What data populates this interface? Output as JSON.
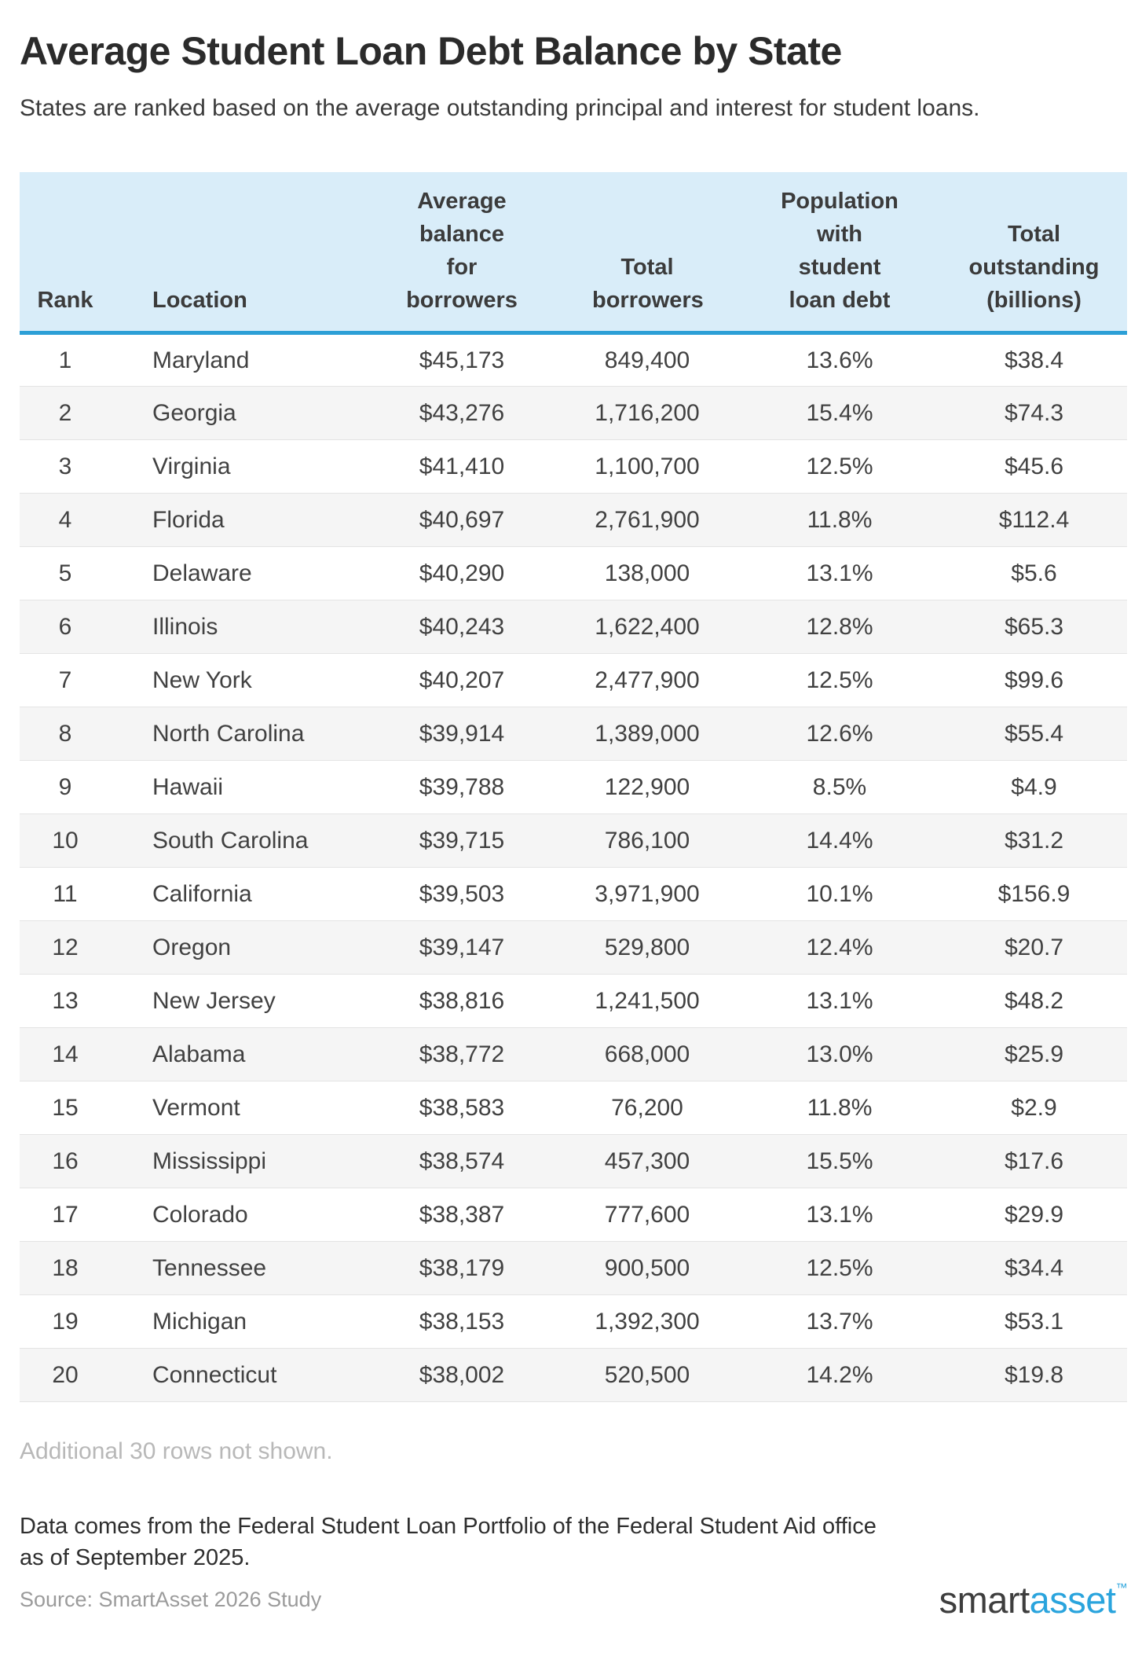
{
  "page": {
    "title": "Average Student Loan Debt Balance by State",
    "subtitle": "States are ranked based on the average outstanding principal and interest for student loans."
  },
  "chart_data": {
    "type": "table",
    "title": "Average Student Loan Debt Balance by State",
    "columns": [
      "Rank",
      "Location",
      "Average balance for borrowers",
      "Total borrowers",
      "Population with student loan debt",
      "Total outstanding (billions)"
    ],
    "rows": [
      [
        "1",
        "Maryland",
        "$45,173",
        "849,400",
        "13.6%",
        "$38.4"
      ],
      [
        "2",
        "Georgia",
        "$43,276",
        "1,716,200",
        "15.4%",
        "$74.3"
      ],
      [
        "3",
        "Virginia",
        "$41,410",
        "1,100,700",
        "12.5%",
        "$45.6"
      ],
      [
        "4",
        "Florida",
        "$40,697",
        "2,761,900",
        "11.8%",
        "$112.4"
      ],
      [
        "5",
        "Delaware",
        "$40,290",
        "138,000",
        "13.1%",
        "$5.6"
      ],
      [
        "6",
        "Illinois",
        "$40,243",
        "1,622,400",
        "12.8%",
        "$65.3"
      ],
      [
        "7",
        "New York",
        "$40,207",
        "2,477,900",
        "12.5%",
        "$99.6"
      ],
      [
        "8",
        "North Carolina",
        "$39,914",
        "1,389,000",
        "12.6%",
        "$55.4"
      ],
      [
        "9",
        "Hawaii",
        "$39,788",
        "122,900",
        "8.5%",
        "$4.9"
      ],
      [
        "10",
        "South Carolina",
        "$39,715",
        "786,100",
        "14.4%",
        "$31.2"
      ],
      [
        "11",
        "California",
        "$39,503",
        "3,971,900",
        "10.1%",
        "$156.9"
      ],
      [
        "12",
        "Oregon",
        "$39,147",
        "529,800",
        "12.4%",
        "$20.7"
      ],
      [
        "13",
        "New Jersey",
        "$38,816",
        "1,241,500",
        "13.1%",
        "$48.2"
      ],
      [
        "14",
        "Alabama",
        "$38,772",
        "668,000",
        "13.0%",
        "$25.9"
      ],
      [
        "15",
        "Vermont",
        "$38,583",
        "76,200",
        "11.8%",
        "$2.9"
      ],
      [
        "16",
        "Mississippi",
        "$38,574",
        "457,300",
        "15.5%",
        "$17.6"
      ],
      [
        "17",
        "Colorado",
        "$38,387",
        "777,600",
        "13.1%",
        "$29.9"
      ],
      [
        "18",
        "Tennessee",
        "$38,179",
        "900,500",
        "12.5%",
        "$34.4"
      ],
      [
        "19",
        "Michigan",
        "$38,153",
        "1,392,300",
        "13.7%",
        "$53.1"
      ],
      [
        "20",
        "Connecticut",
        "$38,002",
        "520,500",
        "14.2%",
        "$19.8"
      ]
    ]
  },
  "notes": {
    "additional": "Additional 30 rows not shown.",
    "data_note_line1": "Data comes from the Federal Student Loan Portfolio of the Federal Student Aid office",
    "data_note_line2": "as of September 2025."
  },
  "footer": {
    "source": "Source: SmartAsset 2026 Study",
    "logo_part1": "smart",
    "logo_part2": "asset",
    "logo_tm": "™"
  },
  "colors": {
    "header_background": "#d9edf9",
    "header_accent_border": "#2c9fd6",
    "zebra_row": "#f5f5f5",
    "row_divider": "#e4e4e4",
    "logo_blue": "#2aa4dd",
    "muted_text": "#b8b8b8"
  }
}
